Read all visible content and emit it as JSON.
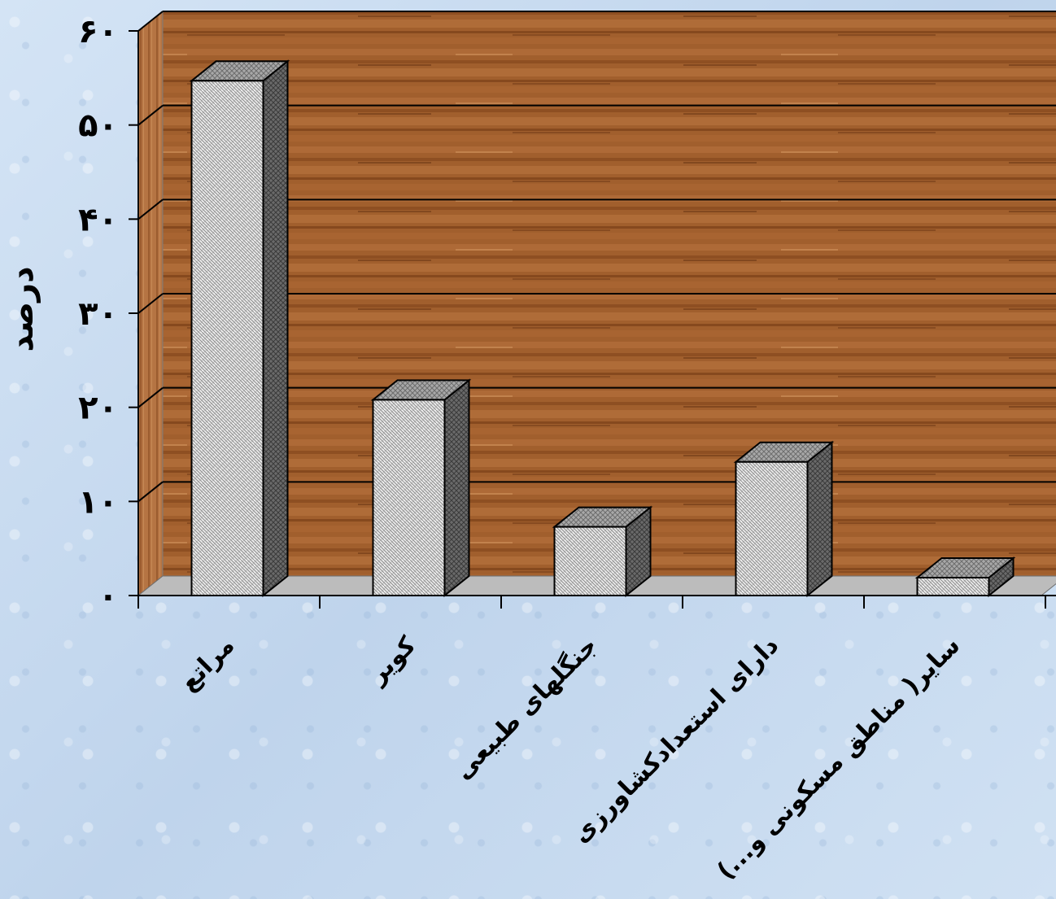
{
  "chart_data": {
    "type": "bar",
    "ylabel": "درصد",
    "ylim": [
      0,
      60
    ],
    "yticks": [
      "۰",
      "۱۰",
      "۲۰",
      "۳۰",
      "۴۰",
      "۵۰",
      "۶۰"
    ],
    "categories": [
      "مراتع",
      "کویر",
      "جنگلهای  طبیعی",
      "دارای  استعدادکشاورزی",
      "سایر( مناطق مسکونی و...)"
    ],
    "values": [
      54.7,
      20.8,
      7.3,
      14.2,
      1.9
    ],
    "grid": true,
    "three_d": true,
    "colors": {
      "wall": "#9c5a2c",
      "floor": "#b9b9b9",
      "bar_front": "#e6e6e6",
      "bar_side": "#555555",
      "bar_top": "#9a9a9a"
    }
  }
}
